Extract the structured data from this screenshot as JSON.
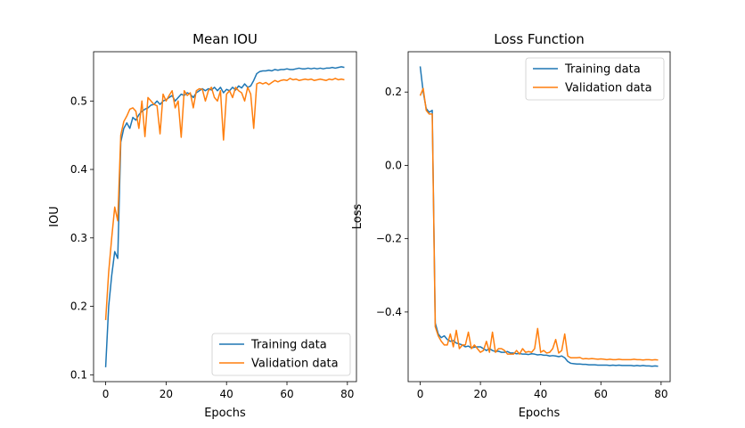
{
  "chart_data": [
    {
      "type": "line",
      "title": "Mean IOU",
      "xlabel": "Epochs",
      "ylabel": "IOU",
      "xlim": [
        -4,
        83
      ],
      "ylim": [
        0.09,
        0.572
      ],
      "xticks": [
        0,
        20,
        40,
        60,
        80
      ],
      "xtick_labels": [
        "0",
        "20",
        "40",
        "60",
        "80"
      ],
      "yticks": [
        0.1,
        0.2,
        0.3,
        0.4,
        0.5
      ],
      "ytick_labels": [
        "0.1",
        "0.2",
        "0.3",
        "0.4",
        "0.5"
      ],
      "legend_position": "lower-right",
      "series": [
        {
          "name": "Training data",
          "color": "#1f77b4",
          "x": [
            0,
            1,
            2,
            3,
            4,
            5,
            6,
            7,
            8,
            9,
            10,
            11,
            12,
            13,
            14,
            15,
            16,
            17,
            18,
            19,
            20,
            21,
            22,
            23,
            24,
            25,
            26,
            27,
            28,
            29,
            30,
            31,
            32,
            33,
            34,
            35,
            36,
            37,
            38,
            39,
            40,
            41,
            42,
            43,
            44,
            45,
            46,
            47,
            48,
            49,
            50,
            51,
            52,
            53,
            54,
            55,
            56,
            57,
            58,
            59,
            60,
            61,
            62,
            63,
            64,
            65,
            66,
            67,
            68,
            69,
            70,
            71,
            72,
            73,
            74,
            75,
            76,
            77,
            78,
            79
          ],
          "values": [
            0.111,
            0.2,
            0.245,
            0.28,
            0.27,
            0.44,
            0.46,
            0.468,
            0.46,
            0.476,
            0.472,
            0.48,
            0.485,
            0.488,
            0.49,
            0.494,
            0.495,
            0.5,
            0.495,
            0.5,
            0.502,
            0.505,
            0.508,
            0.5,
            0.505,
            0.51,
            0.508,
            0.512,
            0.51,
            0.505,
            0.512,
            0.515,
            0.518,
            0.515,
            0.518,
            0.516,
            0.52,
            0.515,
            0.52,
            0.512,
            0.517,
            0.515,
            0.52,
            0.516,
            0.522,
            0.519,
            0.525,
            0.52,
            0.522,
            0.53,
            0.54,
            0.543,
            0.544,
            0.544,
            0.545,
            0.544,
            0.546,
            0.545,
            0.546,
            0.546,
            0.547,
            0.546,
            0.546,
            0.547,
            0.548,
            0.547,
            0.547,
            0.548,
            0.547,
            0.548,
            0.547,
            0.548,
            0.547,
            0.548,
            0.548,
            0.549,
            0.548,
            0.549,
            0.55,
            0.549
          ]
        },
        {
          "name": "Validation data",
          "color": "#ff7f0e",
          "x": [
            0,
            1,
            2,
            3,
            4,
            5,
            6,
            7,
            8,
            9,
            10,
            11,
            12,
            13,
            14,
            15,
            16,
            17,
            18,
            19,
            20,
            21,
            22,
            23,
            24,
            25,
            26,
            27,
            28,
            29,
            30,
            31,
            32,
            33,
            34,
            35,
            36,
            37,
            38,
            39,
            40,
            41,
            42,
            43,
            44,
            45,
            46,
            47,
            48,
            49,
            50,
            51,
            52,
            53,
            54,
            55,
            56,
            57,
            58,
            59,
            60,
            61,
            62,
            63,
            64,
            65,
            66,
            67,
            68,
            69,
            70,
            71,
            72,
            73,
            74,
            75,
            76,
            77,
            78,
            79
          ],
          "values": [
            0.18,
            0.25,
            0.3,
            0.345,
            0.325,
            0.45,
            0.47,
            0.478,
            0.488,
            0.49,
            0.485,
            0.46,
            0.5,
            0.448,
            0.505,
            0.5,
            0.495,
            0.493,
            0.452,
            0.51,
            0.5,
            0.508,
            0.515,
            0.49,
            0.5,
            0.447,
            0.515,
            0.508,
            0.512,
            0.49,
            0.515,
            0.518,
            0.517,
            0.5,
            0.515,
            0.52,
            0.505,
            0.5,
            0.515,
            0.443,
            0.51,
            0.515,
            0.505,
            0.52,
            0.515,
            0.512,
            0.5,
            0.52,
            0.51,
            0.46,
            0.525,
            0.527,
            0.525,
            0.527,
            0.524,
            0.527,
            0.53,
            0.528,
            0.53,
            0.531,
            0.53,
            0.533,
            0.531,
            0.532,
            0.53,
            0.531,
            0.532,
            0.531,
            0.532,
            0.53,
            0.531,
            0.532,
            0.531,
            0.53,
            0.532,
            0.531,
            0.533,
            0.531,
            0.532,
            0.531
          ]
        }
      ]
    },
    {
      "type": "line",
      "title": "Loss Function",
      "xlabel": "Epochs",
      "ylabel": "Loss",
      "xlim": [
        -4,
        83
      ],
      "ylim": [
        -0.59,
        0.31
      ],
      "xticks": [
        0,
        20,
        40,
        60,
        80
      ],
      "xtick_labels": [
        "0",
        "20",
        "40",
        "60",
        "80"
      ],
      "yticks": [
        -0.4,
        -0.2,
        0.0,
        0.2
      ],
      "ytick_labels": [
        "−0.4",
        "−0.2",
        "0.0",
        "0.2"
      ],
      "legend_position": "upper-right",
      "series": [
        {
          "name": "Training data",
          "color": "#1f77b4",
          "x": [
            0,
            1,
            2,
            3,
            4,
            5,
            6,
            7,
            8,
            9,
            10,
            11,
            12,
            13,
            14,
            15,
            16,
            17,
            18,
            19,
            20,
            21,
            22,
            23,
            24,
            25,
            26,
            27,
            28,
            29,
            30,
            31,
            32,
            33,
            34,
            35,
            36,
            37,
            38,
            39,
            40,
            41,
            42,
            43,
            44,
            45,
            46,
            47,
            48,
            49,
            50,
            51,
            52,
            53,
            54,
            55,
            56,
            57,
            58,
            59,
            60,
            61,
            62,
            63,
            64,
            65,
            66,
            67,
            68,
            69,
            70,
            71,
            72,
            73,
            74,
            75,
            76,
            77,
            78,
            79
          ],
          "values": [
            0.27,
            0.2,
            0.155,
            0.145,
            0.15,
            -0.43,
            -0.46,
            -0.47,
            -0.465,
            -0.475,
            -0.48,
            -0.478,
            -0.485,
            -0.487,
            -0.49,
            -0.495,
            -0.493,
            -0.498,
            -0.496,
            -0.495,
            -0.495,
            -0.5,
            -0.505,
            -0.5,
            -0.505,
            -0.508,
            -0.507,
            -0.51,
            -0.51,
            -0.508,
            -0.512,
            -0.512,
            -0.514,
            -0.513,
            -0.515,
            -0.515,
            -0.516,
            -0.514,
            -0.515,
            -0.517,
            -0.516,
            -0.518,
            -0.518,
            -0.52,
            -0.519,
            -0.52,
            -0.522,
            -0.52,
            -0.525,
            -0.535,
            -0.54,
            -0.541,
            -0.542,
            -0.542,
            -0.543,
            -0.543,
            -0.544,
            -0.544,
            -0.544,
            -0.545,
            -0.545,
            -0.545,
            -0.545,
            -0.546,
            -0.545,
            -0.546,
            -0.545,
            -0.546,
            -0.546,
            -0.546,
            -0.546,
            -0.547,
            -0.546,
            -0.547,
            -0.546,
            -0.547,
            -0.547,
            -0.548,
            -0.547,
            -0.548
          ]
        },
        {
          "name": "Validation data",
          "color": "#ff7f0e",
          "x": [
            0,
            1,
            2,
            3,
            4,
            5,
            6,
            7,
            8,
            9,
            10,
            11,
            12,
            13,
            14,
            15,
            16,
            17,
            18,
            19,
            20,
            21,
            22,
            23,
            24,
            25,
            26,
            27,
            28,
            29,
            30,
            31,
            32,
            33,
            34,
            35,
            36,
            37,
            38,
            39,
            40,
            41,
            42,
            43,
            44,
            45,
            46,
            47,
            48,
            49,
            50,
            51,
            52,
            53,
            54,
            55,
            56,
            57,
            58,
            59,
            60,
            61,
            62,
            63,
            64,
            65,
            66,
            67,
            68,
            69,
            70,
            71,
            72,
            73,
            74,
            75,
            76,
            77,
            78,
            79
          ],
          "values": [
            0.19,
            0.21,
            0.15,
            0.14,
            0.14,
            -0.44,
            -0.465,
            -0.48,
            -0.49,
            -0.49,
            -0.46,
            -0.495,
            -0.45,
            -0.5,
            -0.49,
            -0.49,
            -0.455,
            -0.5,
            -0.49,
            -0.5,
            -0.51,
            -0.505,
            -0.48,
            -0.51,
            -0.455,
            -0.51,
            -0.5,
            -0.5,
            -0.505,
            -0.515,
            -0.515,
            -0.515,
            -0.505,
            -0.515,
            -0.5,
            -0.51,
            -0.508,
            -0.51,
            -0.5,
            -0.445,
            -0.51,
            -0.505,
            -0.512,
            -0.51,
            -0.5,
            -0.475,
            -0.512,
            -0.505,
            -0.46,
            -0.52,
            -0.525,
            -0.525,
            -0.525,
            -0.524,
            -0.528,
            -0.527,
            -0.528,
            -0.527,
            -0.528,
            -0.529,
            -0.528,
            -0.529,
            -0.53,
            -0.529,
            -0.53,
            -0.53,
            -0.529,
            -0.53,
            -0.53,
            -0.53,
            -0.53,
            -0.529,
            -0.53,
            -0.53,
            -0.531,
            -0.53,
            -0.53,
            -0.531,
            -0.53,
            -0.531
          ]
        }
      ]
    }
  ]
}
